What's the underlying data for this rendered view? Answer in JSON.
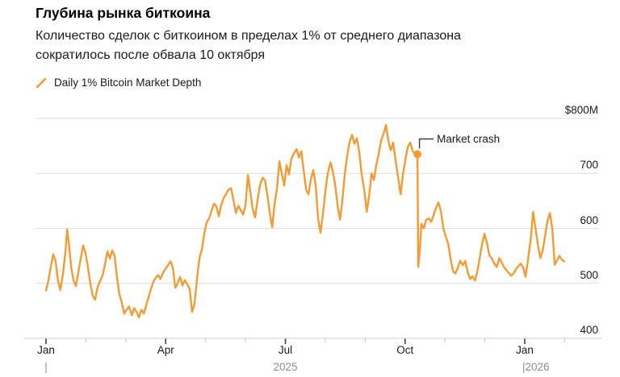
{
  "header": {
    "title": "Глубина рынка биткоина",
    "subtitle_lines": [
      "Количество сделок с биткоином в пределах 1% от среднего диапазона",
      "сократилось после обвала 10 октября"
    ],
    "legend_label": "Daily 1% Bitcoin Market Depth"
  },
  "colors": {
    "line": "#F79B31",
    "title_text": "#000000",
    "body_text": "#1A1A1A",
    "muted_text": "#8F8F8F",
    "grid": "#DEDEDE",
    "axis": "#CDCDCD",
    "tick_major": "#3F3F3F",
    "tick_minor": "#C4C4C4",
    "annotation_line": "#3C3C3C"
  },
  "chart_data": {
    "type": "line",
    "title": "Глубина рынка биткоина",
    "series": [
      {
        "name": "Daily 1% Bitcoin Market Depth",
        "color": "#F79B31"
      }
    ],
    "unit": "$M",
    "x_unit": "months since Jan 2025",
    "xlim": [
      0,
      13.2
    ],
    "ylim": [
      400,
      800
    ],
    "grid": "horizontal",
    "legend_position": "top-left",
    "y_ticks": [
      {
        "value": 800,
        "label": "$800M"
      },
      {
        "value": 700,
        "label": "700"
      },
      {
        "value": 600,
        "label": "600"
      },
      {
        "value": 500,
        "label": "500"
      },
      {
        "value": 400,
        "label": "400"
      }
    ],
    "x_major_ticks": [
      {
        "month": 0,
        "label": "Jan"
      },
      {
        "month": 3,
        "label": "Apr"
      },
      {
        "month": 6,
        "label": "Jul"
      },
      {
        "month": 9,
        "label": "Oct"
      },
      {
        "month": 12,
        "label": "Jan"
      }
    ],
    "x_minor_months": [
      1,
      2,
      4,
      5,
      7,
      8,
      10,
      11,
      13
    ],
    "year_labels": [
      {
        "month": 0,
        "label": "|",
        "align": "center"
      },
      {
        "month": 6,
        "label": "2025",
        "align": "center"
      },
      {
        "month": 12,
        "label": "|2026",
        "align": "left"
      }
    ],
    "annotation": {
      "label": "Market crash",
      "month": 9.31,
      "value": 735
    },
    "points": [
      [
        0,
        487
      ],
      [
        0.06,
        505
      ],
      [
        0.12,
        530
      ],
      [
        0.18,
        553
      ],
      [
        0.24,
        540
      ],
      [
        0.3,
        505
      ],
      [
        0.36,
        488
      ],
      [
        0.43,
        520
      ],
      [
        0.49,
        560
      ],
      [
        0.53,
        598
      ],
      [
        0.57,
        575
      ],
      [
        0.63,
        530
      ],
      [
        0.69,
        505
      ],
      [
        0.75,
        495
      ],
      [
        0.81,
        520
      ],
      [
        0.87,
        545
      ],
      [
        0.93,
        569
      ],
      [
        0.99,
        555
      ],
      [
        1.05,
        530
      ],
      [
        1.11,
        500
      ],
      [
        1.17,
        478
      ],
      [
        1.23,
        470
      ],
      [
        1.3,
        495
      ],
      [
        1.36,
        505
      ],
      [
        1.42,
        515
      ],
      [
        1.48,
        535
      ],
      [
        1.54,
        558
      ],
      [
        1.6,
        545
      ],
      [
        1.66,
        560
      ],
      [
        1.72,
        550
      ],
      [
        1.78,
        510
      ],
      [
        1.84,
        480
      ],
      [
        1.9,
        465
      ],
      [
        1.96,
        445
      ],
      [
        2.02,
        452
      ],
      [
        2.08,
        458
      ],
      [
        2.15,
        442
      ],
      [
        2.21,
        455
      ],
      [
        2.27,
        448
      ],
      [
        2.33,
        438
      ],
      [
        2.39,
        452
      ],
      [
        2.45,
        445
      ],
      [
        2.51,
        460
      ],
      [
        2.57,
        475
      ],
      [
        2.63,
        490
      ],
      [
        2.69,
        503
      ],
      [
        2.75,
        510
      ],
      [
        2.81,
        515
      ],
      [
        2.87,
        508
      ],
      [
        2.94,
        520
      ],
      [
        3,
        527
      ],
      [
        3.06,
        533
      ],
      [
        3.12,
        540
      ],
      [
        3.18,
        528
      ],
      [
        3.24,
        492
      ],
      [
        3.3,
        500
      ],
      [
        3.36,
        512
      ],
      [
        3.42,
        496
      ],
      [
        3.48,
        506
      ],
      [
        3.54,
        498
      ],
      [
        3.6,
        490
      ],
      [
        3.66,
        448
      ],
      [
        3.72,
        462
      ],
      [
        3.79,
        512
      ],
      [
        3.85,
        548
      ],
      [
        3.91,
        562
      ],
      [
        3.97,
        592
      ],
      [
        4.03,
        612
      ],
      [
        4.09,
        618
      ],
      [
        4.15,
        632
      ],
      [
        4.21,
        645
      ],
      [
        4.27,
        640
      ],
      [
        4.33,
        622
      ],
      [
        4.39,
        642
      ],
      [
        4.45,
        655
      ],
      [
        4.51,
        662
      ],
      [
        4.57,
        670
      ],
      [
        4.64,
        673
      ],
      [
        4.7,
        650
      ],
      [
        4.76,
        628
      ],
      [
        4.82,
        641
      ],
      [
        4.88,
        633
      ],
      [
        4.94,
        625
      ],
      [
        5,
        642
      ],
      [
        5.06,
        697
      ],
      [
        5.12,
        668
      ],
      [
        5.18,
        635
      ],
      [
        5.24,
        620
      ],
      [
        5.3,
        650
      ],
      [
        5.36,
        678
      ],
      [
        5.43,
        692
      ],
      [
        5.49,
        687
      ],
      [
        5.55,
        660
      ],
      [
        5.61,
        628
      ],
      [
        5.67,
        602
      ],
      [
        5.73,
        646
      ],
      [
        5.79,
        672
      ],
      [
        5.85,
        722
      ],
      [
        5.91,
        700
      ],
      [
        5.97,
        678
      ],
      [
        6.03,
        715
      ],
      [
        6.09,
        698
      ],
      [
        6.15,
        726
      ],
      [
        6.21,
        736
      ],
      [
        6.28,
        744
      ],
      [
        6.34,
        729
      ],
      [
        6.4,
        740
      ],
      [
        6.46,
        704
      ],
      [
        6.52,
        670
      ],
      [
        6.58,
        662
      ],
      [
        6.64,
        690
      ],
      [
        6.7,
        706
      ],
      [
        6.76,
        678
      ],
      [
        6.82,
        618
      ],
      [
        6.88,
        592
      ],
      [
        6.94,
        626
      ],
      [
        7,
        666
      ],
      [
        7.06,
        700
      ],
      [
        7.13,
        720
      ],
      [
        7.19,
        704
      ],
      [
        7.25,
        678
      ],
      [
        7.31,
        640
      ],
      [
        7.37,
        616
      ],
      [
        7.43,
        652
      ],
      [
        7.49,
        700
      ],
      [
        7.55,
        732
      ],
      [
        7.61,
        758
      ],
      [
        7.67,
        770
      ],
      [
        7.73,
        754
      ],
      [
        7.79,
        764
      ],
      [
        7.85,
        740
      ],
      [
        7.91,
        700
      ],
      [
        7.98,
        668
      ],
      [
        8.04,
        630
      ],
      [
        8.1,
        660
      ],
      [
        8.16,
        700
      ],
      [
        8.22,
        688
      ],
      [
        8.28,
        716
      ],
      [
        8.34,
        736
      ],
      [
        8.4,
        760
      ],
      [
        8.46,
        772
      ],
      [
        8.52,
        788
      ],
      [
        8.58,
        760
      ],
      [
        8.64,
        742
      ],
      [
        8.7,
        756
      ],
      [
        8.77,
        720
      ],
      [
        8.83,
        690
      ],
      [
        8.89,
        662
      ],
      [
        8.95,
        700
      ],
      [
        9.01,
        726
      ],
      [
        9.07,
        748
      ],
      [
        9.13,
        756
      ],
      [
        9.19,
        740
      ],
      [
        9.25,
        736
      ],
      [
        9.31,
        735
      ],
      [
        9.33,
        530
      ],
      [
        9.37,
        562
      ],
      [
        9.41,
        608
      ],
      [
        9.47,
        600
      ],
      [
        9.53,
        616
      ],
      [
        9.6,
        618
      ],
      [
        9.66,
        612
      ],
      [
        9.72,
        626
      ],
      [
        9.78,
        638
      ],
      [
        9.84,
        647
      ],
      [
        9.9,
        630
      ],
      [
        9.96,
        600
      ],
      [
        10.02,
        585
      ],
      [
        10.08,
        572
      ],
      [
        10.14,
        545
      ],
      [
        10.2,
        522
      ],
      [
        10.26,
        518
      ],
      [
        10.32,
        528
      ],
      [
        10.38,
        541
      ],
      [
        10.45,
        533
      ],
      [
        10.51,
        541
      ],
      [
        10.57,
        520
      ],
      [
        10.63,
        508
      ],
      [
        10.69,
        513
      ],
      [
        10.75,
        505
      ],
      [
        10.81,
        521
      ],
      [
        10.87,
        546
      ],
      [
        10.93,
        572
      ],
      [
        10.99,
        590
      ],
      [
        11.05,
        574
      ],
      [
        11.11,
        551
      ],
      [
        11.17,
        546
      ],
      [
        11.23,
        536
      ],
      [
        11.3,
        530
      ],
      [
        11.36,
        546
      ],
      [
        11.42,
        538
      ],
      [
        11.48,
        530
      ],
      [
        11.54,
        524
      ],
      [
        11.6,
        519
      ],
      [
        11.66,
        514
      ],
      [
        11.72,
        518
      ],
      [
        11.78,
        526
      ],
      [
        11.84,
        531
      ],
      [
        11.9,
        536
      ],
      [
        11.96,
        528
      ],
      [
        12.02,
        512
      ],
      [
        12.08,
        542
      ],
      [
        12.15,
        582
      ],
      [
        12.21,
        630
      ],
      [
        12.27,
        600
      ],
      [
        12.33,
        570
      ],
      [
        12.39,
        546
      ],
      [
        12.45,
        560
      ],
      [
        12.51,
        586
      ],
      [
        12.57,
        614
      ],
      [
        12.63,
        628
      ],
      [
        12.69,
        600
      ],
      [
        12.75,
        534
      ],
      [
        12.81,
        542
      ],
      [
        12.87,
        550
      ],
      [
        12.93,
        543
      ],
      [
        12.99,
        540
      ]
    ]
  }
}
